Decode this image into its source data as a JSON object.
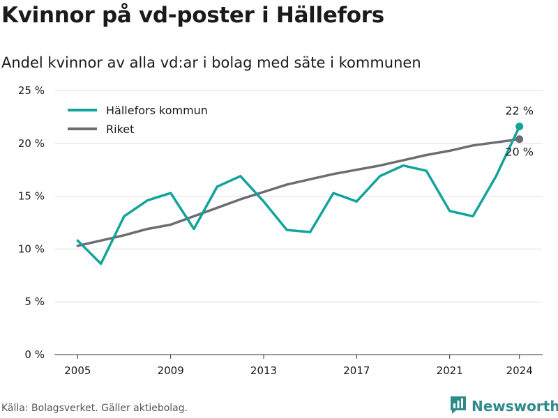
{
  "header": {
    "title": "Kvinnor på vd-poster i Hällefors",
    "subtitle": "Andel kvinnor av alla vd:ar i bolag med säte i kommunen"
  },
  "footer": {
    "source": "Källa: Bolagsverket. Gäller aktiebolag.",
    "brand": "Newsworthy",
    "brand_icon": "bar-chart-logo-icon"
  },
  "chart_data": {
    "type": "line",
    "x": [
      2005,
      2006,
      2007,
      2008,
      2009,
      2010,
      2011,
      2012,
      2013,
      2014,
      2015,
      2016,
      2017,
      2018,
      2019,
      2020,
      2021,
      2022,
      2023,
      2024
    ],
    "xticks": [
      2005,
      2009,
      2013,
      2017,
      2021,
      2024
    ],
    "yticks": [
      0,
      5,
      10,
      15,
      20,
      25
    ],
    "ytick_labels": [
      "0 %",
      "5 %",
      "10 %",
      "15 %",
      "20 %",
      "25 %"
    ],
    "ylim": [
      0,
      25
    ],
    "xlim": [
      2004,
      2025
    ],
    "grid": true,
    "legend_position": "top-left",
    "series": [
      {
        "name": "Hällefors kommun",
        "color": "#12a39a",
        "values": [
          10.8,
          8.6,
          13.1,
          14.6,
          15.3,
          11.9,
          15.9,
          16.9,
          14.5,
          11.8,
          11.6,
          15.3,
          14.5,
          16.9,
          17.9,
          17.4,
          13.6,
          13.1,
          16.9,
          21.6
        ],
        "end_label": "22 %"
      },
      {
        "name": "Riket",
        "color": "#6e6b72",
        "values": [
          10.3,
          10.8,
          11.3,
          11.9,
          12.3,
          13.1,
          13.9,
          14.7,
          15.4,
          16.1,
          16.6,
          17.1,
          17.5,
          17.9,
          18.4,
          18.9,
          19.3,
          19.8,
          20.1,
          20.4
        ],
        "end_label": "20 %"
      }
    ]
  }
}
